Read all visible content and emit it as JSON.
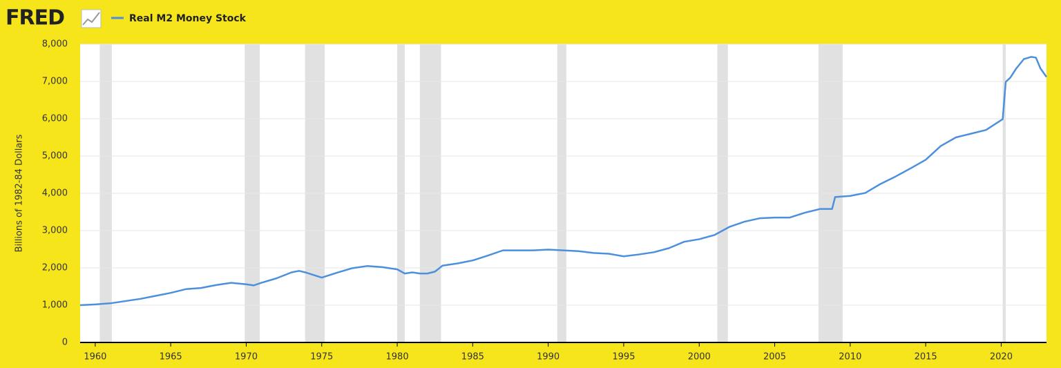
{
  "logo": "FRED",
  "chart_data": {
    "type": "line",
    "y_label": "Billions of 1982-84 Dollars",
    "series": [
      {
        "name": "Real M2 Money Stock",
        "color": "#4c8fdc",
        "x": [
          1959,
          1960,
          1961,
          1962,
          1963,
          1964,
          1965,
          1966,
          1967,
          1968,
          1969,
          1970,
          1970.5,
          1971,
          1972,
          1973,
          1973.5,
          1974,
          1975,
          1976,
          1977,
          1978,
          1979,
          1980,
          1980.5,
          1981,
          1981.5,
          1982,
          1982.5,
          1983,
          1984,
          1985,
          1986,
          1987,
          1988,
          1989,
          1990,
          1991,
          1992,
          1993,
          1994,
          1995,
          1996,
          1997,
          1998,
          1999,
          2000,
          2001,
          2002,
          2003,
          2004,
          2005,
          2006,
          2007,
          2008,
          2008.8,
          2009,
          2010,
          2011,
          2012,
          2013,
          2014,
          2015,
          2016,
          2017,
          2018,
          2019,
          2020.1,
          2020.3,
          2020.6,
          2021,
          2021.5,
          2022,
          2022.3,
          2022.6,
          2023
        ],
        "values": [
          1000,
          1020,
          1050,
          1110,
          1170,
          1250,
          1330,
          1430,
          1460,
          1540,
          1600,
          1560,
          1530,
          1600,
          1720,
          1880,
          1920,
          1870,
          1740,
          1870,
          1990,
          2050,
          2020,
          1960,
          1850,
          1880,
          1850,
          1850,
          1900,
          2060,
          2120,
          2200,
          2330,
          2470,
          2470,
          2470,
          2490,
          2470,
          2450,
          2400,
          2380,
          2310,
          2360,
          2420,
          2530,
          2700,
          2770,
          2880,
          3100,
          3240,
          3330,
          3350,
          3350,
          3480,
          3580,
          3580,
          3900,
          3930,
          4010,
          4250,
          4450,
          4670,
          4900,
          5270,
          5500,
          5600,
          5700,
          5990,
          6990,
          7100,
          7350,
          7600,
          7660,
          7640,
          7350,
          7120
        ]
      }
    ],
    "recessions": [
      [
        1960.3,
        1961.1
      ],
      [
        1969.9,
        1970.9
      ],
      [
        1973.9,
        1975.2
      ],
      [
        1980.0,
        1980.5
      ],
      [
        1981.5,
        1982.9
      ],
      [
        1990.6,
        1991.2
      ],
      [
        2001.2,
        2001.9
      ],
      [
        2007.9,
        2009.5
      ],
      [
        2020.1,
        2020.3
      ]
    ],
    "recession_color": "#e1e1e1",
    "xlim": [
      1959,
      2023
    ],
    "xticks": [
      1960,
      1965,
      1970,
      1975,
      1980,
      1985,
      1990,
      1995,
      2000,
      2005,
      2010,
      2015,
      2020
    ],
    "ylim": [
      0,
      8000
    ],
    "yticks": [
      0,
      {
        "value": 1000,
        "label": "1,000"
      },
      {
        "value": 2000,
        "label": "2,000"
      },
      {
        "value": 3000,
        "label": "3,000"
      },
      {
        "value": 4000,
        "label": "4,000"
      },
      {
        "value": 5000,
        "label": "5,000"
      },
      {
        "value": 6000,
        "label": "6,000"
      },
      {
        "value": 7000,
        "label": "7,000"
      },
      {
        "value": 8000,
        "label": "8,000"
      }
    ],
    "grid": true
  }
}
